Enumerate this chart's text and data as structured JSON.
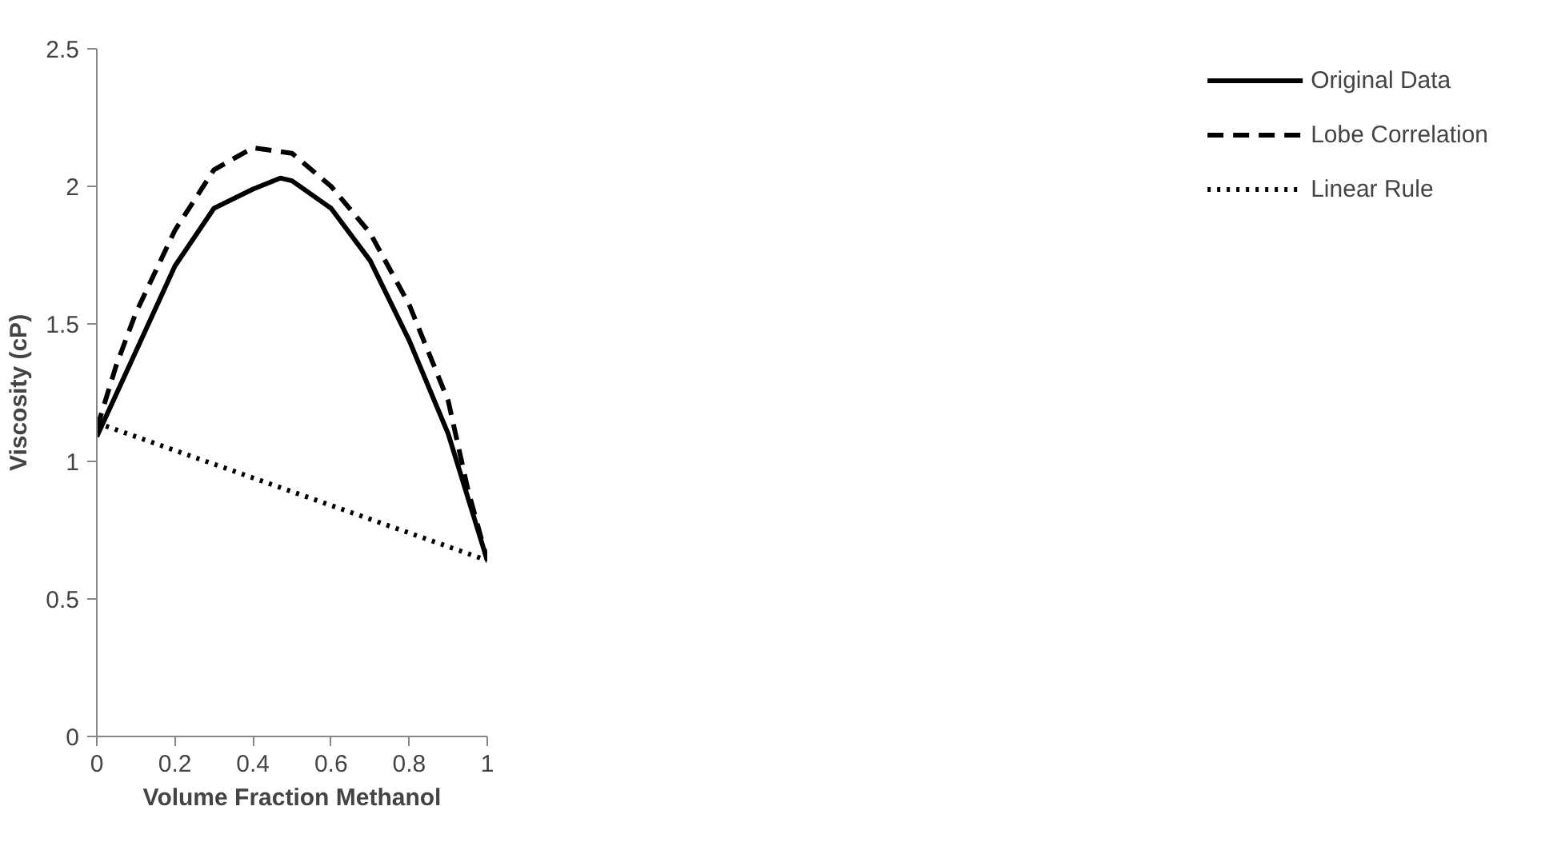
{
  "chart_data": {
    "type": "line",
    "xlabel": "Volume Fraction Methanol",
    "ylabel": "Viscosity (cP)",
    "xlim": [
      0,
      1
    ],
    "xticks": [
      0,
      {
        "value": 0.2,
        "label": "0.2"
      },
      {
        "value": 0.4,
        "label": "0.4"
      },
      {
        "value": 0.6,
        "label": "0.6"
      },
      {
        "value": 0.8,
        "label": "0.8"
      },
      1
    ],
    "ylim": [
      0,
      2.5
    ],
    "yticks": [
      0,
      {
        "value": 0.5,
        "label": "0.5"
      },
      1,
      {
        "value": 1.5,
        "label": "1.5"
      },
      2,
      {
        "value": 2.5,
        "label": "2.5"
      }
    ],
    "grid": false,
    "legend": "right",
    "series": [
      {
        "name": "Original Data",
        "color": "#000000",
        "line_style": "solid",
        "x": [
          0,
          0.1,
          0.2,
          0.3,
          0.4,
          0.47,
          0.5,
          0.6,
          0.7,
          0.8,
          0.9,
          1
        ],
        "values": [
          1.09,
          1.4,
          1.71,
          1.92,
          1.99,
          2.03,
          2.02,
          1.92,
          1.73,
          1.44,
          1.1,
          0.64
        ]
      },
      {
        "name": "Lobe Correlation",
        "color": "#000000",
        "line_style": "dashed",
        "x": [
          0,
          0.05,
          0.1,
          0.2,
          0.3,
          0.4,
          0.5,
          0.6,
          0.7,
          0.8,
          0.9,
          0.95,
          1
        ],
        "values": [
          1.12,
          1.35,
          1.54,
          1.84,
          2.06,
          2.14,
          2.12,
          2.0,
          1.83,
          1.57,
          1.22,
          0.9,
          0.64
        ]
      },
      {
        "name": "Linear Rule",
        "color": "#000000",
        "line_style": "dotted",
        "x": [
          0,
          1
        ],
        "values": [
          1.14,
          0.64
        ]
      }
    ]
  }
}
